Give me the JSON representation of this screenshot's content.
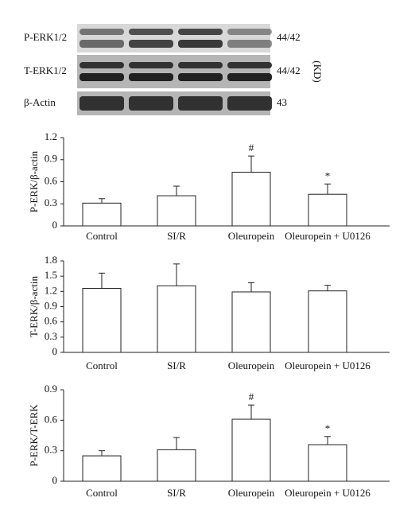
{
  "blot": {
    "rows": [
      {
        "label": "P-ERK1/2",
        "size": "44/42"
      },
      {
        "label": "T-ERK1/2",
        "size": "44/42"
      },
      {
        "label": "β-Actin",
        "size": "43"
      }
    ],
    "unit": "(KD)"
  },
  "chart_data": [
    {
      "type": "bar",
      "y_label": "P-ERK/β-actin",
      "categories": [
        "Control",
        "SI/R",
        "Oleuropein",
        "Oleuropein + U0126"
      ],
      "values": [
        0.31,
        0.41,
        0.73,
        0.43
      ],
      "errors": [
        0.06,
        0.13,
        0.22,
        0.14
      ],
      "color": "#ffffff",
      "ylim": [
        0,
        1.2
      ],
      "yticks": [
        0,
        0.3,
        0.6,
        0.9,
        1.2
      ],
      "annotations": [
        {
          "text": "#",
          "category": "Oleuropein"
        },
        {
          "text": "*",
          "category": "Oleuropein + U0126"
        }
      ]
    },
    {
      "type": "bar",
      "y_label": "T-ERK/β-actin",
      "categories": [
        "Control",
        "SI/R",
        "Oleuropein",
        "Oleuropein + U0126"
      ],
      "values": [
        1.26,
        1.31,
        1.19,
        1.21
      ],
      "errors": [
        0.3,
        0.43,
        0.18,
        0.11
      ],
      "color": "#ffffff",
      "ylim": [
        0,
        1.8
      ],
      "yticks": [
        0,
        0.3,
        0.6,
        0.9,
        1.2,
        1.5,
        1.8
      ]
    },
    {
      "type": "bar",
      "y_label": "P-ERK/T-ERK",
      "categories": [
        "Control",
        "SI/R",
        "Oleuropein",
        "Oleuropein + U0126"
      ],
      "values": [
        0.25,
        0.31,
        0.61,
        0.36
      ],
      "errors": [
        0.05,
        0.12,
        0.14,
        0.08
      ],
      "color": "#ffffff",
      "ylim": [
        0,
        0.9
      ],
      "yticks": [
        0,
        0.3,
        0.6,
        0.9
      ],
      "annotations": [
        {
          "text": "#",
          "category": "Oleuropein"
        },
        {
          "text": "*",
          "category": "Oleuropein + U0126"
        }
      ]
    }
  ]
}
